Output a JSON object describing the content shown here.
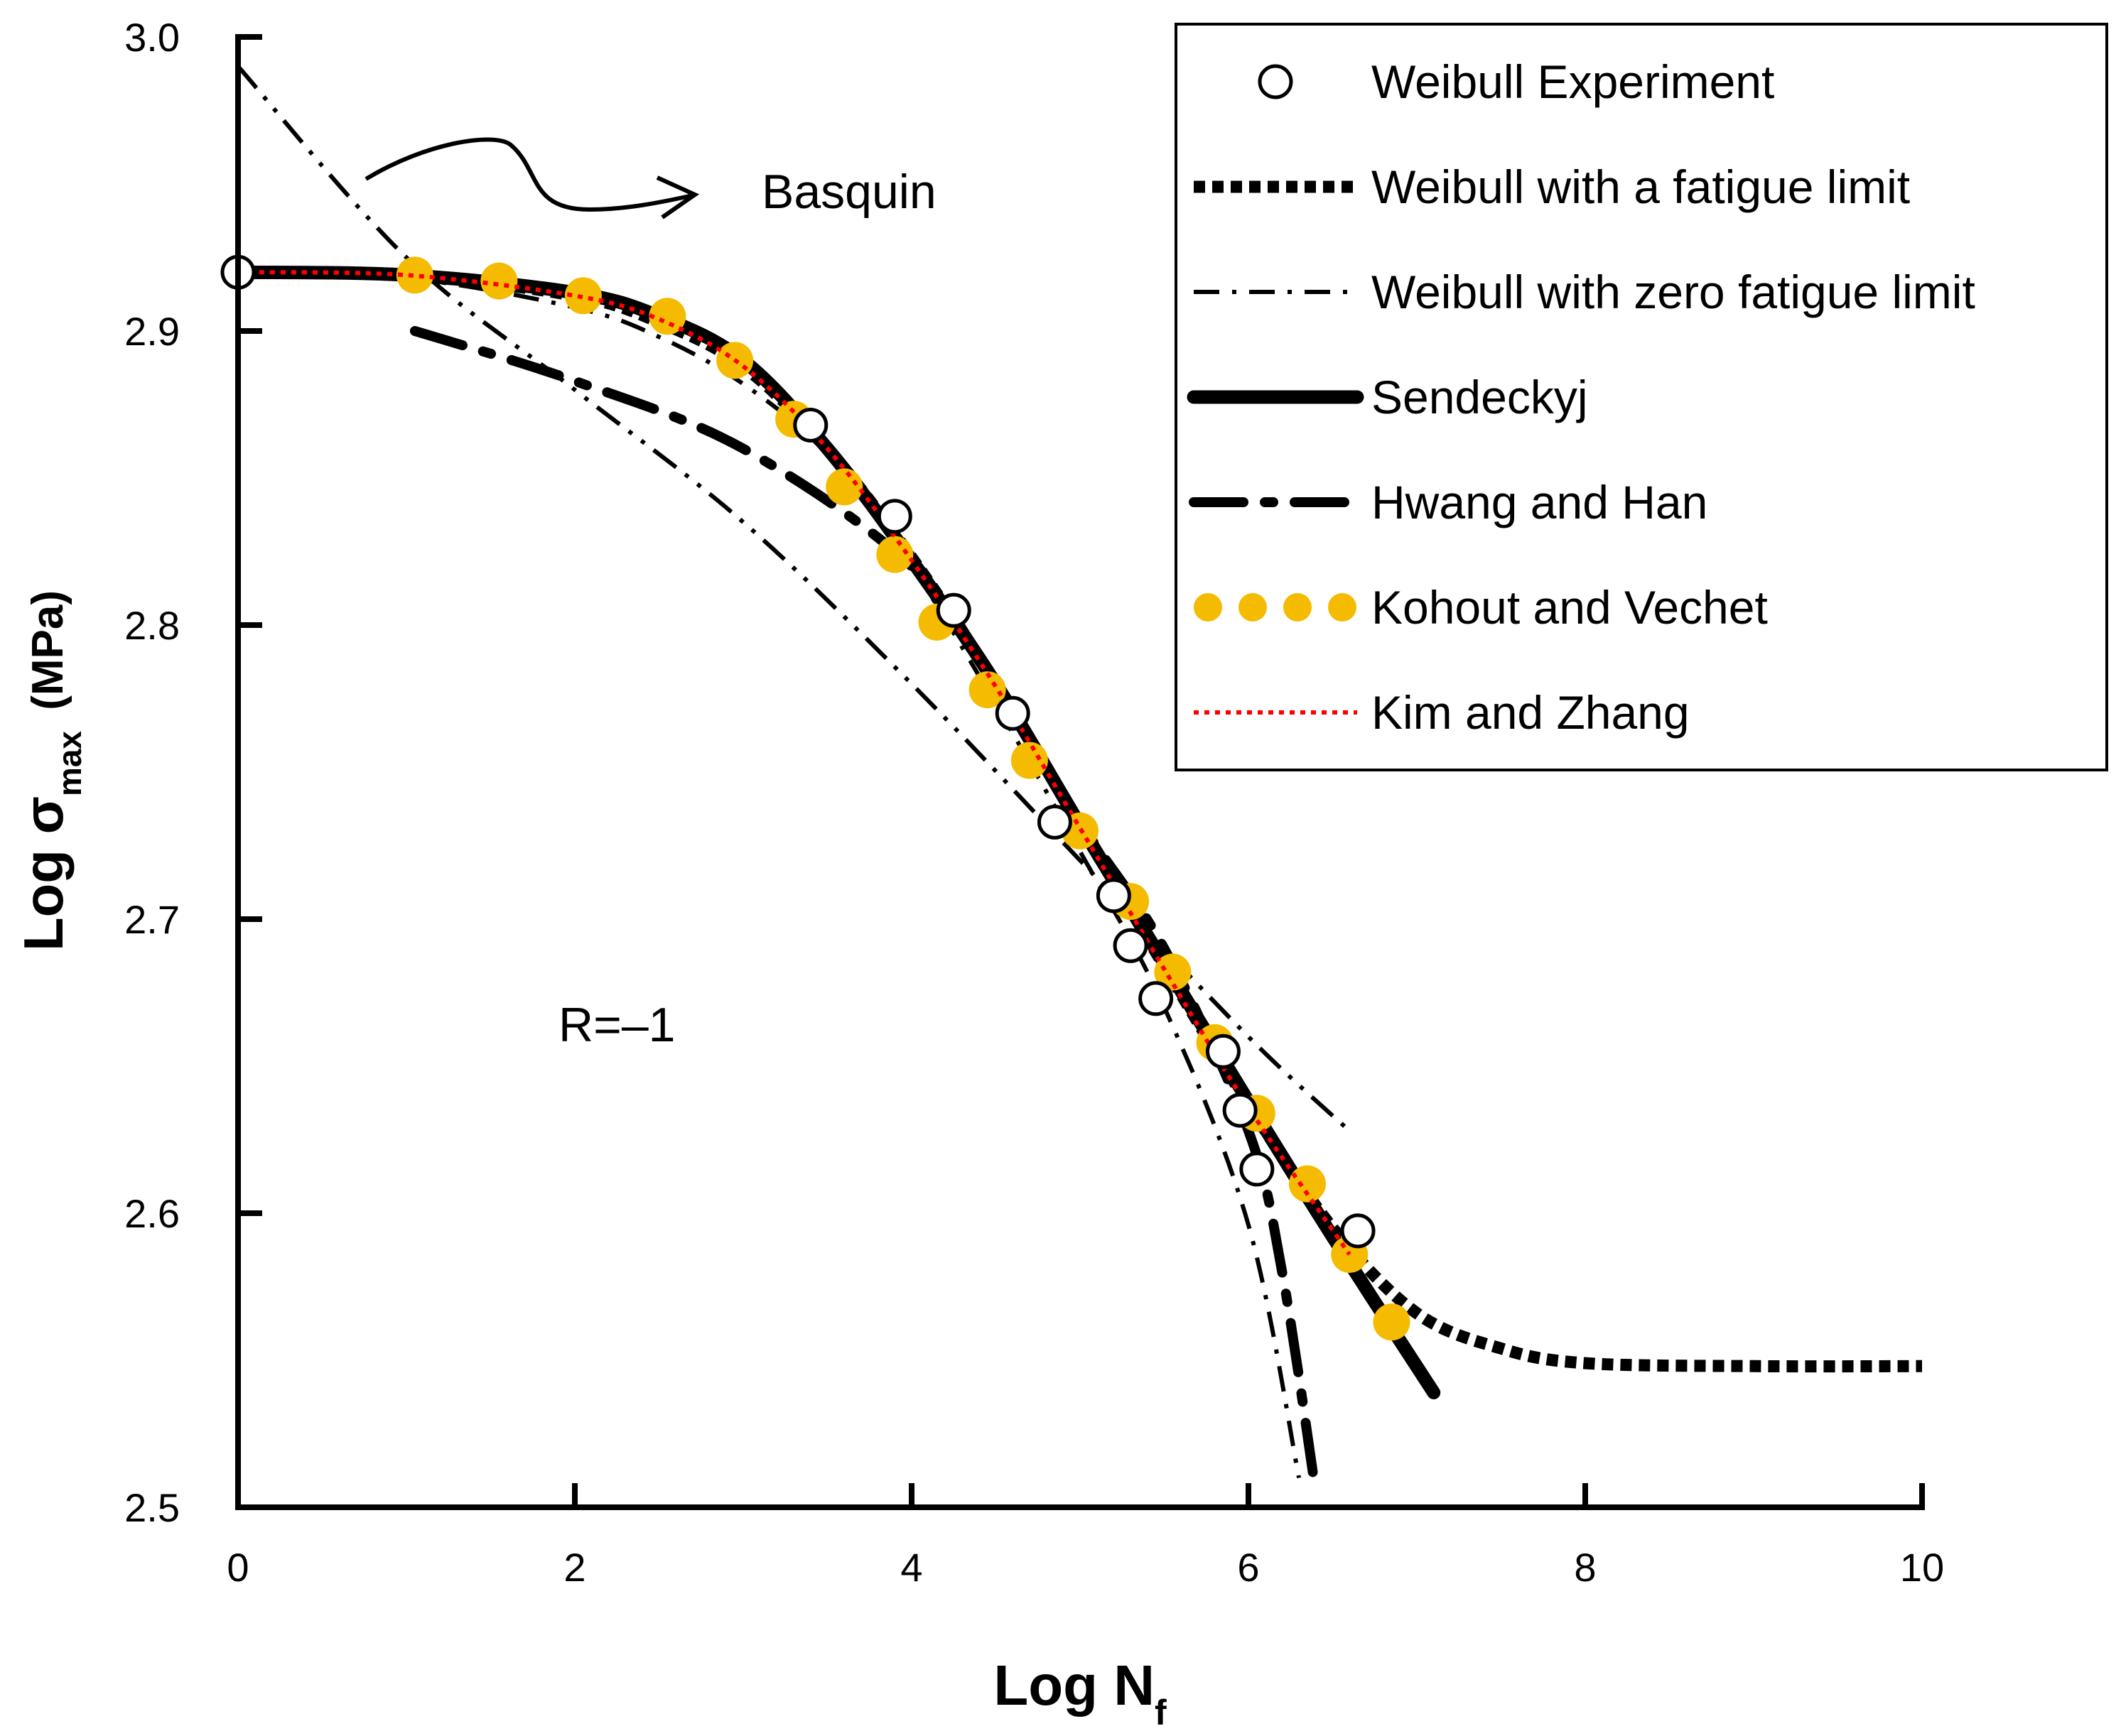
{
  "chart_data": {
    "type": "line",
    "title": "",
    "xlabel": "Log N",
    "xlabel_sub": "f",
    "ylabel": "Log σ",
    "ylabel_sub": "max",
    "ylabel_unit": "(MPa)",
    "xlim": [
      0,
      10
    ],
    "ylim": [
      2.5,
      3.0
    ],
    "xticks": [
      0,
      2,
      4,
      6,
      8,
      10
    ],
    "xtick_labels": [
      "0",
      "2",
      "4",
      "6",
      "8",
      "10"
    ],
    "yticks": [
      2.5,
      2.6,
      2.7,
      2.8,
      2.9,
      3.0
    ],
    "ytick_labels": [
      "2.5",
      "2.6",
      "2.7",
      "2.8",
      "2.9",
      "3.0"
    ],
    "grid": false,
    "legend_position": "top-right",
    "annotations": {
      "basquin": "Basquin",
      "ratio": "R=–1"
    },
    "series": [
      {
        "name": "Weibull Experiment",
        "style": "markers",
        "color": "#ffffff",
        "x": [
          0,
          3.4,
          3.9,
          4.25,
          4.6,
          4.85,
          5.2,
          5.3,
          5.45,
          5.85,
          5.95,
          6.05,
          6.65
        ],
        "y": [
          2.92,
          2.868,
          2.837,
          2.805,
          2.77,
          2.733,
          2.708,
          2.691,
          2.673,
          2.655,
          2.635,
          2.615,
          2.594
        ]
      },
      {
        "name": "Weibull with a fatigue limit",
        "style": "dotted-thick",
        "color": "#000000",
        "x": [
          0,
          1,
          2,
          2.5,
          3,
          3.5,
          4,
          4.5,
          5,
          5.5,
          6,
          6.5,
          7,
          7.5,
          8,
          9,
          10
        ],
        "y": [
          2.92,
          2.919,
          2.912,
          2.903,
          2.888,
          2.86,
          2.823,
          2.78,
          2.732,
          2.684,
          2.637,
          2.595,
          2.566,
          2.554,
          2.549,
          2.548,
          2.548
        ]
      },
      {
        "name": "Weibull with zero fatigue limit",
        "style": "dash-dot",
        "color": "#000000",
        "x": [
          0,
          1,
          2,
          2.5,
          3,
          3.5,
          4,
          4.5,
          5,
          5.5,
          6,
          6.3
        ],
        "y": [
          2.92,
          2.918,
          2.908,
          2.898,
          2.882,
          2.858,
          2.82,
          2.773,
          2.723,
          2.67,
          2.596,
          2.51
        ]
      },
      {
        "name": "Sendeckyj",
        "style": "solid-thick",
        "color": "#000000",
        "x": [
          0,
          1,
          2,
          2.5,
          3,
          3.5,
          4,
          4.5,
          5,
          5.5,
          6,
          6.5,
          7.1
        ],
        "y": [
          2.92,
          2.919,
          2.913,
          2.905,
          2.89,
          2.86,
          2.822,
          2.78,
          2.732,
          2.685,
          2.638,
          2.592,
          2.539
        ]
      },
      {
        "name": "Hwang and Han",
        "style": "long-dash-dot",
        "color": "#000000",
        "x": [
          1.05,
          2,
          3,
          4,
          4.5,
          5,
          5.5,
          6,
          6.2,
          6.4
        ],
        "y": [
          2.9,
          2.883,
          2.86,
          2.82,
          2.78,
          2.733,
          2.69,
          2.628,
          2.58,
          2.505
        ]
      },
      {
        "name": "Kohout and Vechet",
        "style": "dots-large",
        "color": "#f5bb00",
        "x": [
          1.05,
          1.55,
          2.05,
          2.55,
          2.95,
          3.3,
          3.6,
          3.9,
          4.15,
          4.45,
          4.7,
          5.0,
          5.3,
          5.55,
          5.8,
          6.05,
          6.35,
          6.6,
          6.85
        ],
        "y": [
          2.919,
          2.917,
          2.912,
          2.905,
          2.89,
          2.87,
          2.847,
          2.824,
          2.801,
          2.778,
          2.754,
          2.73,
          2.706,
          2.682,
          2.658,
          2.634,
          2.61,
          2.586,
          2.563
        ]
      },
      {
        "name": "Kim and Zhang",
        "style": "dotted-thin",
        "color": "#ff0000",
        "x": [
          0,
          1,
          2,
          2.5,
          3,
          3.5,
          4,
          4.5,
          5,
          5.5,
          6,
          6.6
        ],
        "y": [
          2.92,
          2.919,
          2.912,
          2.904,
          2.888,
          2.86,
          2.822,
          2.779,
          2.731,
          2.683,
          2.636,
          2.586
        ]
      },
      {
        "name": "Basquin",
        "style": "dash-dot-dot",
        "color": "#000000",
        "x": [
          0,
          1,
          2,
          3,
          4,
          5,
          6,
          6.6
        ],
        "y": [
          2.99,
          2.925,
          2.88,
          2.835,
          2.78,
          2.72,
          2.66,
          2.628
        ]
      }
    ]
  }
}
